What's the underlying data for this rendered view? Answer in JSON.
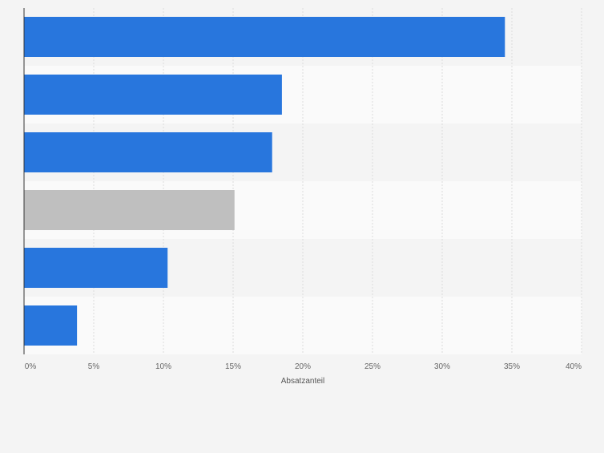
{
  "chart_data": {
    "type": "bar",
    "orientation": "horizontal",
    "categories": [
      "",
      "",
      "",
      "",
      "",
      ""
    ],
    "values": [
      34.5,
      18.5,
      17.8,
      15.1,
      10.3,
      3.8
    ],
    "bar_colors": [
      "#2876dd",
      "#2876dd",
      "#2876dd",
      "#bfbfbf",
      "#2876dd",
      "#2876dd"
    ],
    "title": "",
    "xlabel": "Absatzanteil",
    "ylabel": "",
    "xlim": [
      0,
      40
    ],
    "x_ticks": [
      0,
      5,
      10,
      15,
      20,
      25,
      30,
      35,
      40
    ],
    "x_tick_labels": [
      "0%",
      "5%",
      "10%",
      "15%",
      "20%",
      "25%",
      "30%",
      "35%",
      "40%"
    ],
    "grid": "vertical",
    "legend": "none",
    "colors": {
      "primary": "#2876dd",
      "highlight": "#bfbfbf",
      "band_a": "#f4f4f4",
      "band_b": "#fafafa",
      "grid": "#dcdcdc",
      "axis": "#333333"
    }
  }
}
